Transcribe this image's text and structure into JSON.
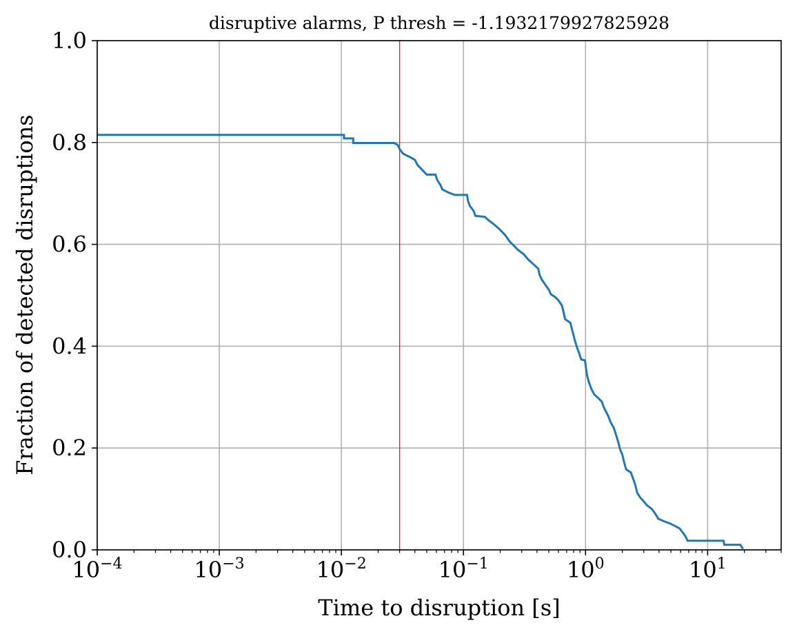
{
  "chart_data": {
    "type": "line",
    "title": "disruptive alarms, P thresh = -1.1932179927825928",
    "xlabel": "Time to disruption [s]",
    "ylabel": "Fraction of detected disruptions",
    "xscale": "log",
    "xlim": [
      0.0001,
      40
    ],
    "ylim": [
      0.0,
      1.0
    ],
    "grid": true,
    "line_color": "#1f77b4",
    "threshold_color": "#ff0000",
    "threshold_x": 0.03,
    "x_ticks": [
      {
        "value": 0.0001,
        "base": "10",
        "exp": "−4"
      },
      {
        "value": 0.001,
        "base": "10",
        "exp": "−3"
      },
      {
        "value": 0.01,
        "base": "10",
        "exp": "−2"
      },
      {
        "value": 0.1,
        "base": "10",
        "exp": "−1"
      },
      {
        "value": 1,
        "base": "10",
        "exp": "0"
      },
      {
        "value": 10,
        "base": "10",
        "exp": "1"
      }
    ],
    "y_ticks": [
      {
        "value": 0.0,
        "label": "0.0"
      },
      {
        "value": 0.2,
        "label": "0.2"
      },
      {
        "value": 0.4,
        "label": "0.4"
      },
      {
        "value": 0.6,
        "label": "0.6"
      },
      {
        "value": 0.8,
        "label": "0.8"
      },
      {
        "value": 1.0,
        "label": "1.0"
      }
    ],
    "series": [
      {
        "points": [
          [
            0.0001,
            0.815
          ],
          [
            0.0105,
            0.815
          ],
          [
            0.0105,
            0.808
          ],
          [
            0.0125,
            0.808
          ],
          [
            0.0125,
            0.799
          ],
          [
            0.027,
            0.799
          ],
          [
            0.029,
            0.795
          ],
          [
            0.03,
            0.787
          ],
          [
            0.032,
            0.778
          ],
          [
            0.036,
            0.772
          ],
          [
            0.04,
            0.766
          ],
          [
            0.042,
            0.756
          ],
          [
            0.046,
            0.746
          ],
          [
            0.05,
            0.737
          ],
          [
            0.059,
            0.737
          ],
          [
            0.061,
            0.726
          ],
          [
            0.065,
            0.716
          ],
          [
            0.067,
            0.708
          ],
          [
            0.075,
            0.702
          ],
          [
            0.085,
            0.697
          ],
          [
            0.107,
            0.697
          ],
          [
            0.109,
            0.685
          ],
          [
            0.113,
            0.675
          ],
          [
            0.121,
            0.666
          ],
          [
            0.125,
            0.656
          ],
          [
            0.15,
            0.654
          ],
          [
            0.159,
            0.648
          ],
          [
            0.174,
            0.641
          ],
          [
            0.195,
            0.631
          ],
          [
            0.22,
            0.618
          ],
          [
            0.24,
            0.605
          ],
          [
            0.26,
            0.597
          ],
          [
            0.28,
            0.589
          ],
          [
            0.31,
            0.581
          ],
          [
            0.34,
            0.57
          ],
          [
            0.37,
            0.562
          ],
          [
            0.39,
            0.557
          ],
          [
            0.41,
            0.552
          ],
          [
            0.42,
            0.54
          ],
          [
            0.44,
            0.53
          ],
          [
            0.47,
            0.52
          ],
          [
            0.5,
            0.511
          ],
          [
            0.52,
            0.502
          ],
          [
            0.56,
            0.497
          ],
          [
            0.6,
            0.49
          ],
          [
            0.64,
            0.48
          ],
          [
            0.66,
            0.467
          ],
          [
            0.68,
            0.453
          ],
          [
            0.75,
            0.446
          ],
          [
            0.78,
            0.43
          ],
          [
            0.82,
            0.41
          ],
          [
            0.85,
            0.398
          ],
          [
            0.89,
            0.385
          ],
          [
            0.92,
            0.374
          ],
          [
            0.99,
            0.372
          ],
          [
            1.01,
            0.355
          ],
          [
            1.03,
            0.342
          ],
          [
            1.07,
            0.328
          ],
          [
            1.12,
            0.315
          ],
          [
            1.18,
            0.305
          ],
          [
            1.26,
            0.299
          ],
          [
            1.36,
            0.291
          ],
          [
            1.41,
            0.28
          ],
          [
            1.48,
            0.27
          ],
          [
            1.54,
            0.262
          ],
          [
            1.6,
            0.251
          ],
          [
            1.7,
            0.24
          ],
          [
            1.76,
            0.229
          ],
          [
            1.85,
            0.212
          ],
          [
            1.92,
            0.197
          ],
          [
            2.0,
            0.187
          ],
          [
            2.08,
            0.17
          ],
          [
            2.15,
            0.158
          ],
          [
            2.35,
            0.152
          ],
          [
            2.45,
            0.14
          ],
          [
            2.55,
            0.128
          ],
          [
            2.65,
            0.112
          ],
          [
            2.8,
            0.103
          ],
          [
            3.0,
            0.095
          ],
          [
            3.2,
            0.087
          ],
          [
            3.5,
            0.08
          ],
          [
            3.7,
            0.072
          ],
          [
            3.95,
            0.061
          ],
          [
            4.3,
            0.057
          ],
          [
            4.9,
            0.052
          ],
          [
            5.4,
            0.047
          ],
          [
            5.9,
            0.042
          ],
          [
            6.3,
            0.033
          ],
          [
            6.6,
            0.026
          ],
          [
            6.85,
            0.018
          ],
          [
            13.5,
            0.018
          ],
          [
            13.7,
            0.01
          ],
          [
            18.5,
            0.01
          ],
          [
            19.5,
            0.002
          ]
        ]
      }
    ]
  }
}
